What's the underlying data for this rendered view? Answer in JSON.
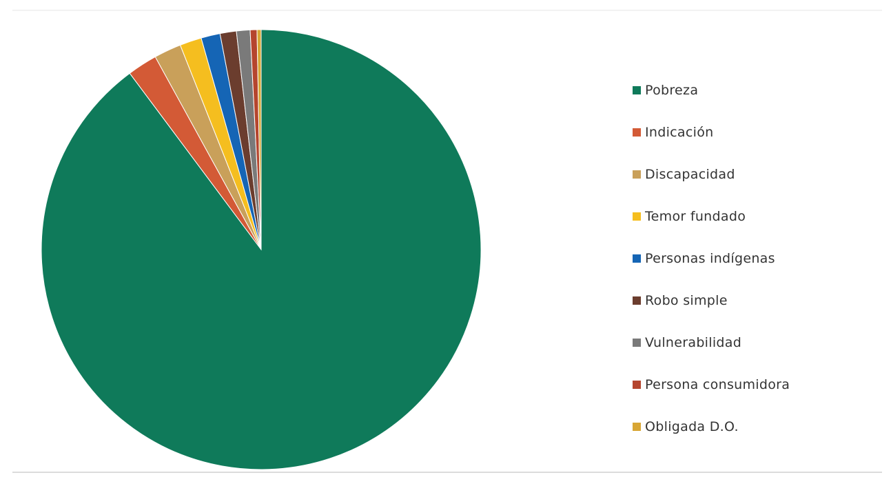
{
  "chart_data": {
    "type": "pie",
    "title": "",
    "legend_position": "right",
    "start_angle_deg": 0,
    "direction": "clockwise",
    "slices": [
      {
        "label": "Pobreza",
        "value": 89.8,
        "color": "#0f7a5a"
      },
      {
        "label": "Indicación",
        "value": 2.2,
        "color": "#d35a36"
      },
      {
        "label": "Discapacidad",
        "value": 2.0,
        "color": "#c9a05a"
      },
      {
        "label": "Temor fundado",
        "value": 1.6,
        "color": "#f5be1f"
      },
      {
        "label": "Personas indígenas",
        "value": 1.4,
        "color": "#1565b5"
      },
      {
        "label": "Robo simple",
        "value": 1.2,
        "color": "#6b3d2e"
      },
      {
        "label": "Vulnerabilidad",
        "value": 1.0,
        "color": "#7a7a7a"
      },
      {
        "label": "Persona consumidora",
        "value": 0.5,
        "color": "#b5452e"
      },
      {
        "label": "Obligada D.O.",
        "value": 0.3,
        "color": "#d8a634"
      }
    ]
  }
}
